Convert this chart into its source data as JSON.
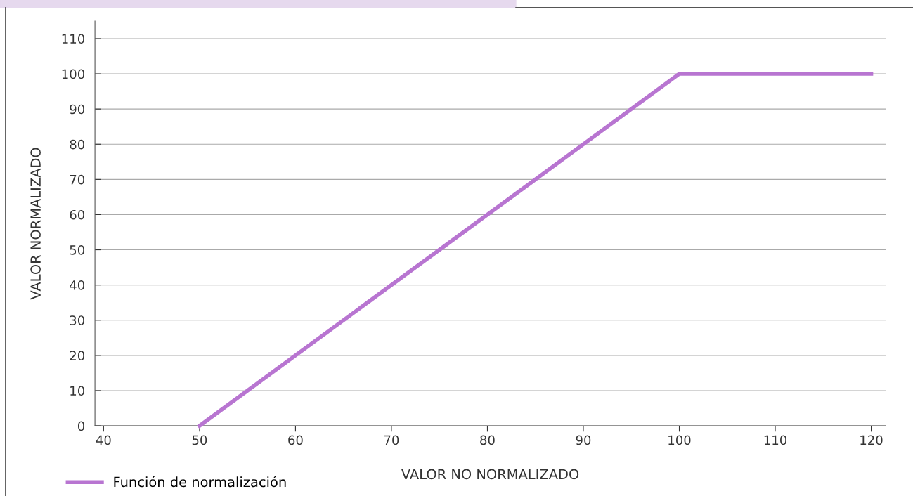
{
  "chart_data": {
    "type": "line",
    "xlabel": "VALOR NO NORMALIZADO",
    "ylabel": "VALOR NORMALIZADO",
    "x": [
      50,
      100,
      120
    ],
    "series": [
      {
        "name": "Función de normalización",
        "color": "#b875d1",
        "values": [
          0,
          100,
          100
        ]
      }
    ],
    "xlim": [
      39.1,
      121.5
    ],
    "xticks": [
      40,
      50,
      60,
      70,
      80,
      90,
      100,
      110,
      120
    ],
    "ylim": [
      0,
      115
    ],
    "yticks": [
      0,
      10,
      20,
      30,
      40,
      50,
      60,
      70,
      80,
      90,
      100,
      110
    ],
    "grid": "y",
    "legend": "bottom left",
    "marker": "none",
    "line_style": "solid"
  }
}
